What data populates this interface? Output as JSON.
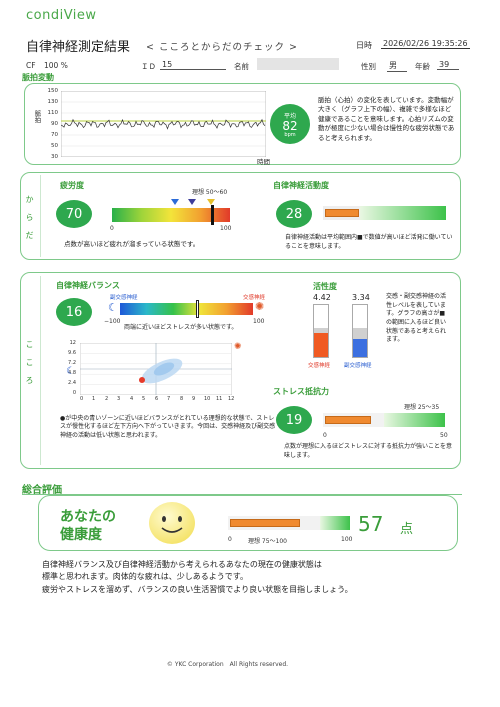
{
  "header": {
    "logo": "condiView",
    "title": "自律神経測定結果",
    "subtitle": "< こころとからだのチェック >",
    "datetime_label": "日時",
    "datetime": "2026/02/26 19:35:26",
    "cf_label": "CF",
    "cf_value": "100 %",
    "id_label": "ＩＤ",
    "id_value": "15",
    "name_label": "名前",
    "name_value": "",
    "gender_label": "性別",
    "gender_value": "男",
    "age_label": "年齢",
    "age_value": "39"
  },
  "pulse": {
    "section_title": "脈拍変動",
    "y_label": "脈拍",
    "y_ticks": [
      "150",
      "130",
      "110",
      "90",
      "70",
      "50",
      "30"
    ],
    "x_label": "時間",
    "avg_label": "平均",
    "avg_value": "82",
    "avg_unit": "bpm",
    "description": "脈拍（心拍）の変化を表しています。変動幅が大きく（グラフ上下の幅）、複雑で多様なほど健康であることを意味します。心拍リズムの変動が極度に少ない場合は慢性的な疲労状態であると考えられます。"
  },
  "karada": {
    "side_label": "からだ",
    "fatigue": {
      "title": "疲労度",
      "value": "70",
      "ideal": "理想 50～60",
      "min": "0",
      "max": "100",
      "note": "点数が高いほど疲れが溜まっている状態です。"
    },
    "activity": {
      "title": "自律神経活動度",
      "value": "28",
      "level": 0.28,
      "note": "自律神経活動は平均範囲内■で数値が高いほど活発に働いていることを意味します。"
    }
  },
  "kokoro": {
    "side_label": "こころ",
    "balance": {
      "title": "自律神経バランス",
      "value": "16",
      "para_label": "副交感神経",
      "sym_label": "交感神経",
      "min": "−100",
      "max": "100",
      "note": "両端に近いほどストレスが多い状態です。",
      "scatter_y_ticks": [
        "12",
        "9.6",
        "7.2",
        "4.8",
        "2.4",
        "0"
      ],
      "scatter_x_ticks": [
        "0",
        "1",
        "2",
        "3",
        "4",
        "5",
        "6",
        "7",
        "8",
        "9",
        "10",
        "11",
        "12"
      ],
      "description": "●が中央の青いゾーンに近いほどバランスがとれている理想的な状態で、ストレスが慢性化するほど左下方向へ下がっていきます。今回は、交感神経及び副交感神経の活動は低い状態と思われます。"
    },
    "activity": {
      "title": "活性度",
      "sym_value": "4.42",
      "para_value": "3.34",
      "sym_level": 0.44,
      "para_level": 0.33,
      "sym_label": "交感神経",
      "para_label": "副交感神経",
      "description": "交感・副交感神経の活性レベルを表しています。グラフの高さが■の範囲に入るほど良い状態であると考えられます。"
    },
    "stress": {
      "title": "ストレス抵抗力",
      "value": "19",
      "ideal": "理想 25～35",
      "min": "0",
      "max": "50",
      "level": 0.38,
      "note": "点数が理想に入るほどストレスに対する抵抗力が強いことを意味します。"
    }
  },
  "overall": {
    "section_title": "総合評価",
    "health_label_1": "あなたの",
    "health_label_2": "健康度",
    "value": "57",
    "unit": "点",
    "ideal": "理想 75～100",
    "min": "0",
    "max": "100",
    "level": 0.57,
    "comment_1": "自律神経バランス及び自律神経活動から考えられるあなたの現在の健康状態は",
    "comment_2": "標準と思われます。肉体的な疲れは、少しあるようです。",
    "comment_3": "疲労やストレスを溜めず、バランスの良い生活習慣でより良い状態を目指しましょう。"
  },
  "footer": {
    "copyright": "© YKC Corporation　All Rights reserved."
  },
  "colors": {
    "accent_green": "#2ea84e",
    "border_green": "#7ec98a",
    "orange": "#f08a30",
    "blue": "#3b6fe0"
  }
}
